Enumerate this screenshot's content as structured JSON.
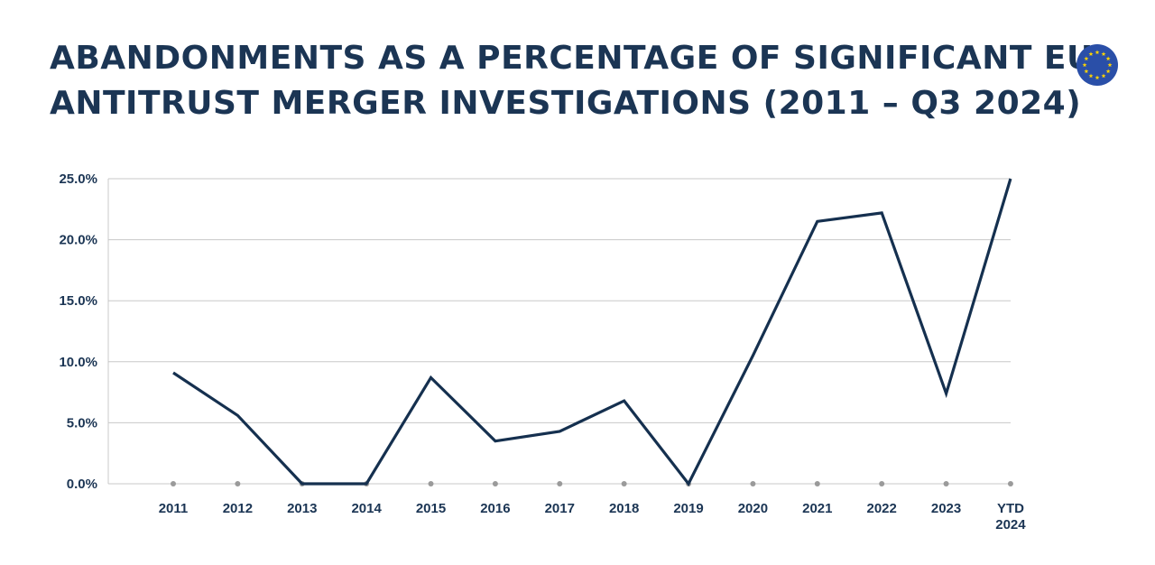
{
  "header": {
    "title_line1": "ABANDONMENTS AS A PERCENTAGE OF SIGNIFICANT EU",
    "title_line2": "ANTITRUST MERGER INVESTIGATIONS (2011 – Q3 2024)",
    "logo_icon": "eu-flag-icon"
  },
  "colors": {
    "line": "#15304f",
    "text": "#1b3554",
    "grid": "#c8c8c8",
    "marker": "#9a9a9a",
    "eu_blue": "#2a4fa8",
    "eu_star": "#ffd400"
  },
  "chart_data": {
    "type": "line",
    "title": "ABANDONMENTS AS A PERCENTAGE OF SIGNIFICANT EU ANTITRUST MERGER INVESTIGATIONS (2011 – Q3 2024)",
    "categories": [
      "2011",
      "2012",
      "2013",
      "2014",
      "2015",
      "2016",
      "2017",
      "2018",
      "2019",
      "2020",
      "2021",
      "2022",
      "2023",
      "YTD 2024"
    ],
    "values": [
      9.1,
      5.6,
      0.0,
      0.0,
      8.7,
      3.5,
      4.3,
      6.8,
      0.0,
      10.5,
      21.5,
      22.2,
      7.4,
      25.0
    ],
    "y_ticks": [
      "0.0%",
      "5.0%",
      "10.0%",
      "15.0%",
      "20.0%",
      "25.0%"
    ],
    "ylim": [
      0,
      25
    ],
    "grid": true,
    "legend": "none",
    "xlabel": "",
    "ylabel": ""
  }
}
